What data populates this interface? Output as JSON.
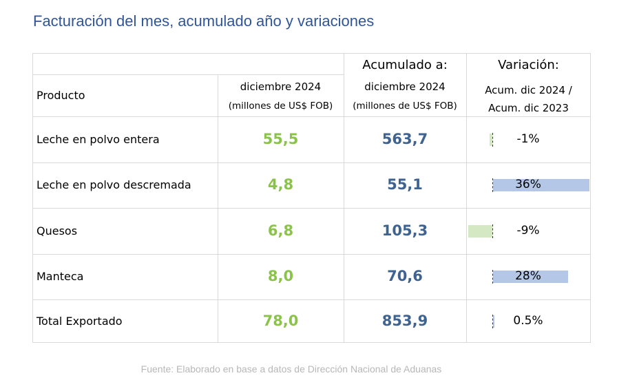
{
  "title": "Facturación del mes, acumulado año y variaciones",
  "colors": {
    "title": "#2f5597",
    "month_values": "#8bc34a",
    "ytd_values": "#3f6390",
    "positive_bar": "#b4c7e7",
    "negative_bar": "#d5e8c4"
  },
  "header": {
    "producto": "Producto",
    "month_line1": "diciembre 2024",
    "month_line2": "(millones de US$ FOB)",
    "ytd_top": "Acumulado a:",
    "ytd_line1": "diciembre 2024",
    "ytd_line2": "(millones de US$ FOB)",
    "var_top": "Variación:",
    "var_line1": "Acum. dic 2024 /",
    "var_line2": "Acum. dic 2023"
  },
  "chart_data": {
    "type": "table",
    "columns": [
      "Producto",
      "diciembre 2024 (millones de US$ FOB)",
      "Acumulado a: diciembre 2024 (millones de US$ FOB)",
      "Variación: Acum. dic 2024 / Acum. dic 2023"
    ],
    "rows": [
      {
        "producto": "Leche en polvo entera",
        "mes": "55,5",
        "acumulado": "563,7",
        "variacion_label": "-1%",
        "variacion": -1
      },
      {
        "producto": "Leche en polvo descremada",
        "mes": "4,8",
        "acumulado": "55,1",
        "variacion_label": "36%",
        "variacion": 36
      },
      {
        "producto": "Quesos",
        "mes": "6,8",
        "acumulado": "105,3",
        "variacion_label": "-9%",
        "variacion": -9
      },
      {
        "producto": "Manteca",
        "mes": "8,0",
        "acumulado": "70,6",
        "variacion_label": "28%",
        "variacion": 28
      },
      {
        "producto": "Total Exportado",
        "mes": "78,0",
        "acumulado": "853,9",
        "variacion_label": "0.5%",
        "variacion": 0.5
      }
    ]
  },
  "footer": "Fuente: Elaborado en base a datos de Dirección Nacional de Aduanas"
}
